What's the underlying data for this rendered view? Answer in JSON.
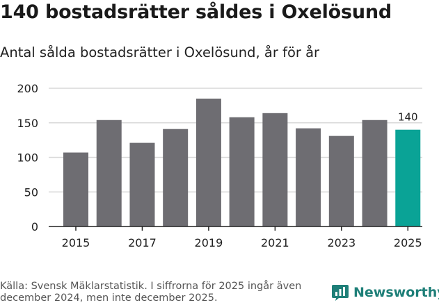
{
  "header": {
    "title": "140 bostadsrätter såldes i Oxelösund",
    "subtitle": "Antal sålda bostadsrätter i Oxelösund, år för år"
  },
  "chart_data": {
    "type": "bar",
    "categories": [
      "2015",
      "2016",
      "2017",
      "2018",
      "2019",
      "2020",
      "2021",
      "2022",
      "2023",
      "2024",
      "2025"
    ],
    "values": [
      107,
      154,
      121,
      141,
      185,
      158,
      164,
      142,
      131,
      154,
      140
    ],
    "x_tick_labels": [
      "2015",
      "2017",
      "2019",
      "2021",
      "2023",
      "2025"
    ],
    "y_ticks": [
      0,
      50,
      100,
      150,
      200
    ],
    "ylim": [
      0,
      200
    ],
    "grid": true,
    "highlight_index": 10,
    "data_labels": [
      {
        "index": 10,
        "text": "140"
      }
    ],
    "colors": {
      "bar": "#6e6d72",
      "highlight": "#0aa396",
      "grid": "#d9d9d9",
      "axis": "#222222"
    }
  },
  "footer": {
    "source": "Källa: Svensk Mäklarstatistik. I siffrorna för 2025 ingår även december 2024, men inte december 2025.",
    "brand": "Newsworthy",
    "brand_icon": "newsworthy-logo-icon",
    "brand_color": "#1e7f78"
  }
}
